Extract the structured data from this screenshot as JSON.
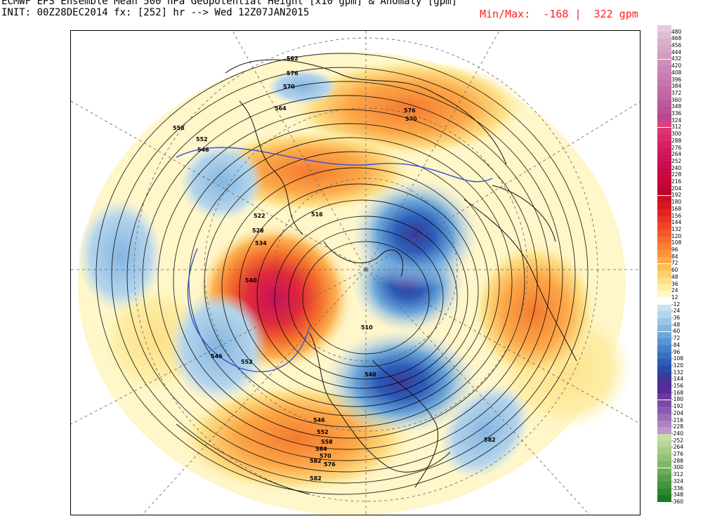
{
  "header": {
    "title": "ECMWF EPS Ensemble Mean 500 hPa Geopotential Height [x10 gpm] & Anomaly [gpm]",
    "init": "INIT: 00Z28DEC2014 fx: [252] hr --> Wed 12Z07JAN2015",
    "minmax": "Min/Max:  -168 |  322 gpm"
  },
  "map": {
    "projection": "north polar stereographic",
    "contour_labels": [
      "582",
      "576",
      "570",
      "564",
      "558",
      "552",
      "546",
      "540",
      "528",
      "534",
      "522",
      "516",
      "510",
      "540",
      "546",
      "552",
      "582",
      "546",
      "552",
      "558",
      "564",
      "570",
      "576",
      "582",
      "570",
      "576",
      "582"
    ]
  },
  "legend": {
    "ticks": [
      "480",
      "468",
      "456",
      "444",
      "432",
      "420",
      "408",
      "396",
      "384",
      "372",
      "360",
      "348",
      "336",
      "324",
      "312",
      "300",
      "288",
      "276",
      "264",
      "252",
      "240",
      "228",
      "216",
      "204",
      "192",
      "180",
      "168",
      "156",
      "144",
      "132",
      "120",
      "108",
      "96",
      "84",
      "72",
      "60",
      "48",
      "36",
      "24",
      "12",
      "-12",
      "-24",
      "-36",
      "-48",
      "-60",
      "-72",
      "-84",
      "-96",
      "-108",
      "-120",
      "-132",
      "-144",
      "-156",
      "-168",
      "-180",
      "-192",
      "-204",
      "-216",
      "-228",
      "-240",
      "-252",
      "-264",
      "-276",
      "-288",
      "-300",
      "-312",
      "-324",
      "-336",
      "-348",
      "-360"
    ],
    "colors": [
      "#e8c8dc",
      "#e0bcd4",
      "#d8b0cc",
      "#d6a6c6",
      "#d29bc0",
      "#ce90ba",
      "#ca86b4",
      "#c87eb0",
      "#c676ac",
      "#c26ca6",
      "#c064a2",
      "#bc5a9c",
      "#ba5298",
      "#b64894",
      "#e0407a",
      "#dc3672",
      "#d82c6a",
      "#d42262",
      "#d01a5c",
      "#cc1456",
      "#c80e50",
      "#c80a40",
      "#c8083a",
      "#c40634",
      "#b8082c",
      "#c81024",
      "#d81820",
      "#e42420",
      "#ec3424",
      "#f04428",
      "#f4582c",
      "#f86c30",
      "#fa8036",
      "#fc943e",
      "#fca848",
      "#fcbc58",
      "#fcd06c",
      "#fde088",
      "#fdeea8",
      "#fff8c8",
      "#ffffff",
      "#c8e0f0",
      "#b4d4ec",
      "#9cc6e6",
      "#84b6e0",
      "#6ca6da",
      "#5694d2",
      "#4482ca",
      "#3670c2",
      "#2c5cb8",
      "#2a4aa8",
      "#3a3a98",
      "#4a3098",
      "#5a2a96",
      "#6a3a9e",
      "#7a4aa6",
      "#8a5cae",
      "#9c6eb8",
      "#ae82c2",
      "#c096cc",
      "#c8dca8",
      "#b8d498",
      "#a6ca88",
      "#94c078",
      "#80b668",
      "#6cac58",
      "#58a04a",
      "#44943e",
      "#308632",
      "#1e7828"
    ]
  }
}
